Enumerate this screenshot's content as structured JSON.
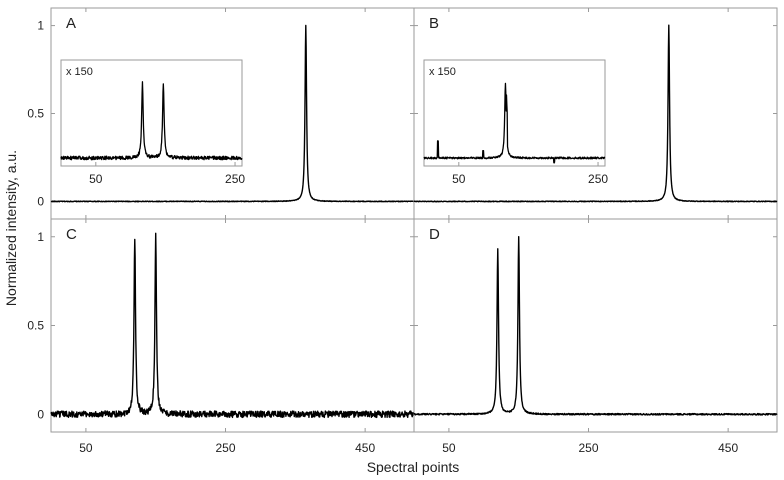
{
  "figure": {
    "xlabel": "Spectral points",
    "ylabel": "Normalized intensity, a.u."
  },
  "chart_data": [
    {
      "type": "line",
      "panel": "A",
      "label": "A",
      "xlim": [
        0,
        520
      ],
      "ylim": [
        -0.1,
        1.1
      ],
      "xticks": [
        50,
        250,
        450
      ],
      "yticks": [
        0,
        0.5,
        1
      ],
      "ytick_labels": [
        "0",
        "0.5",
        "1"
      ],
      "peaks": [
        {
          "x": 365,
          "height": 1.0
        }
      ],
      "noise": 0.002,
      "inset": {
        "label": "x 150",
        "xlim": [
          0,
          260
        ],
        "xticks": [
          50,
          250
        ],
        "peaks": [
          {
            "x": 117,
            "height": 0.85
          },
          {
            "x": 147,
            "height": 0.85
          }
        ],
        "artifacts": [],
        "noise": 0.02
      }
    },
    {
      "type": "line",
      "panel": "B",
      "label": "B",
      "xlim": [
        0,
        520
      ],
      "ylim": [
        -0.1,
        1.1
      ],
      "xticks": [
        50,
        250,
        450
      ],
      "yticks": [
        0,
        0.5,
        1
      ],
      "ytick_labels": [
        "",
        "",
        ""
      ],
      "peaks": [
        {
          "x": 365,
          "height": 1.0
        }
      ],
      "noise": 0.002,
      "inset": {
        "label": "x 150",
        "xlim": [
          0,
          260
        ],
        "xticks": [
          50,
          250
        ],
        "peaks": [
          {
            "x": 117,
            "height": 0.85
          }
        ],
        "artifacts": [
          {
            "x": 20,
            "height": 0.2
          },
          {
            "x": 85,
            "height": 0.08
          },
          {
            "x": 119,
            "height": 0.35
          },
          {
            "x": 187,
            "height": -0.05
          }
        ],
        "noise": 0.01
      }
    },
    {
      "type": "line",
      "panel": "C",
      "label": "C",
      "xlim": [
        0,
        520
      ],
      "ylim": [
        -0.1,
        1.1
      ],
      "xticks": [
        50,
        250,
        450
      ],
      "yticks": [
        0,
        0.5,
        1
      ],
      "ytick_labels": [
        "0",
        "0.5",
        "1"
      ],
      "peaks": [
        {
          "x": 120,
          "height": 1.0
        },
        {
          "x": 150,
          "height": 1.0
        }
      ],
      "noise": 0.018
    },
    {
      "type": "line",
      "panel": "D",
      "label": "D",
      "xlim": [
        0,
        520
      ],
      "ylim": [
        -0.1,
        1.1
      ],
      "xticks": [
        50,
        250,
        450
      ],
      "yticks": [
        0,
        0.5,
        1
      ],
      "ytick_labels": [
        "",
        "",
        ""
      ],
      "peaks": [
        {
          "x": 120,
          "height": 0.93
        },
        {
          "x": 150,
          "height": 1.0
        }
      ],
      "noise": 0.004
    }
  ]
}
